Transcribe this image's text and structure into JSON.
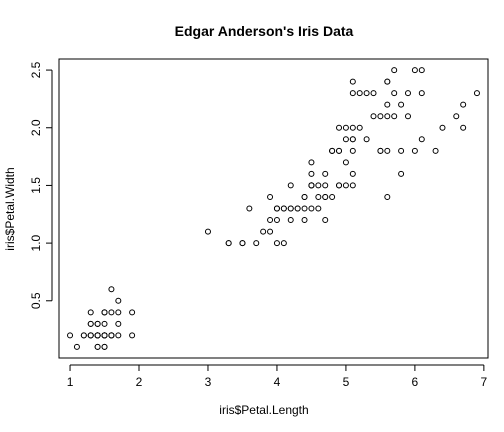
{
  "chart_data": {
    "type": "scatter",
    "title": "Edgar Anderson's Iris Data",
    "xlabel": "iris$Petal.Length",
    "ylabel": "iris$Petal.Width",
    "xlim": [
      0.84,
      7.06
    ],
    "ylim": [
      0.004,
      2.596
    ],
    "xticks": [
      1,
      2,
      3,
      4,
      5,
      6,
      7
    ],
    "yticks": [
      0.5,
      1.0,
      1.5,
      2.0,
      2.5
    ],
    "xtick_labels": [
      "1",
      "2",
      "3",
      "4",
      "5",
      "6",
      "7"
    ],
    "ytick_labels": [
      "0.5",
      "1.0",
      "1.5",
      "2.0",
      "2.5"
    ],
    "grid": false,
    "marker": "open-circle",
    "x": [
      1.4,
      1.4,
      1.3,
      1.5,
      1.4,
      1.7,
      1.4,
      1.5,
      1.4,
      1.5,
      1.5,
      1.6,
      1.4,
      1.1,
      1.2,
      1.5,
      1.3,
      1.4,
      1.7,
      1.5,
      1.7,
      1.5,
      1.0,
      1.7,
      1.9,
      1.6,
      1.6,
      1.5,
      1.4,
      1.6,
      1.6,
      1.5,
      1.5,
      1.4,
      1.5,
      1.2,
      1.3,
      1.4,
      1.3,
      1.5,
      1.3,
      1.3,
      1.3,
      1.6,
      1.9,
      1.4,
      1.6,
      1.4,
      1.5,
      1.4,
      4.7,
      4.5,
      4.9,
      4.0,
      4.6,
      4.5,
      4.7,
      3.3,
      4.6,
      3.9,
      3.5,
      4.2,
      4.0,
      4.7,
      3.6,
      4.4,
      4.5,
      4.1,
      4.5,
      3.9,
      4.8,
      4.0,
      4.9,
      4.7,
      4.3,
      4.4,
      4.8,
      5.0,
      4.5,
      3.5,
      3.8,
      3.7,
      3.9,
      5.1,
      4.5,
      4.5,
      4.7,
      4.4,
      4.1,
      4.0,
      4.4,
      4.6,
      4.0,
      3.3,
      4.2,
      4.2,
      4.2,
      4.3,
      3.0,
      4.1,
      6.0,
      5.1,
      5.9,
      5.6,
      5.8,
      6.6,
      4.5,
      6.3,
      5.8,
      6.1,
      5.1,
      5.3,
      5.5,
      5.0,
      5.1,
      5.3,
      5.5,
      6.7,
      6.9,
      5.0,
      5.7,
      4.9,
      6.7,
      4.9,
      5.7,
      6.0,
      4.8,
      4.9,
      5.6,
      5.8,
      6.1,
      6.4,
      5.6,
      5.1,
      5.6,
      6.1,
      5.6,
      5.5,
      4.8,
      5.4,
      5.6,
      5.1,
      5.1,
      5.9,
      5.7,
      5.2,
      5.0,
      5.2,
      5.4,
      5.1
    ],
    "y": [
      0.2,
      0.2,
      0.2,
      0.2,
      0.2,
      0.4,
      0.3,
      0.2,
      0.2,
      0.1,
      0.2,
      0.2,
      0.1,
      0.1,
      0.2,
      0.4,
      0.4,
      0.3,
      0.3,
      0.3,
      0.2,
      0.4,
      0.2,
      0.5,
      0.2,
      0.2,
      0.4,
      0.2,
      0.2,
      0.2,
      0.2,
      0.4,
      0.1,
      0.2,
      0.2,
      0.2,
      0.2,
      0.1,
      0.2,
      0.2,
      0.3,
      0.3,
      0.2,
      0.6,
      0.4,
      0.3,
      0.2,
      0.2,
      0.2,
      0.2,
      1.4,
      1.5,
      1.5,
      1.3,
      1.5,
      1.3,
      1.6,
      1.0,
      1.3,
      1.4,
      1.0,
      1.5,
      1.0,
      1.4,
      1.3,
      1.4,
      1.5,
      1.0,
      1.5,
      1.1,
      1.8,
      1.3,
      1.5,
      1.2,
      1.3,
      1.4,
      1.4,
      1.7,
      1.5,
      1.0,
      1.1,
      1.0,
      1.2,
      1.6,
      1.5,
      1.6,
      1.5,
      1.3,
      1.3,
      1.3,
      1.2,
      1.4,
      1.2,
      1.0,
      1.3,
      1.2,
      1.3,
      1.3,
      1.1,
      1.3,
      2.5,
      1.9,
      2.1,
      1.8,
      2.2,
      2.1,
      1.7,
      1.8,
      1.8,
      2.5,
      2.0,
      1.9,
      2.1,
      2.0,
      2.4,
      2.3,
      1.8,
      2.2,
      2.3,
      1.5,
      2.3,
      2.0,
      2.0,
      1.8,
      2.1,
      1.8,
      1.8,
      1.8,
      2.1,
      1.6,
      1.9,
      2.0,
      2.2,
      1.5,
      1.4,
      2.3,
      2.4,
      1.8,
      1.8,
      2.1,
      2.4,
      2.3,
      1.9,
      2.3,
      2.5,
      2.3,
      1.9,
      2.0,
      2.3,
      1.8
    ]
  }
}
